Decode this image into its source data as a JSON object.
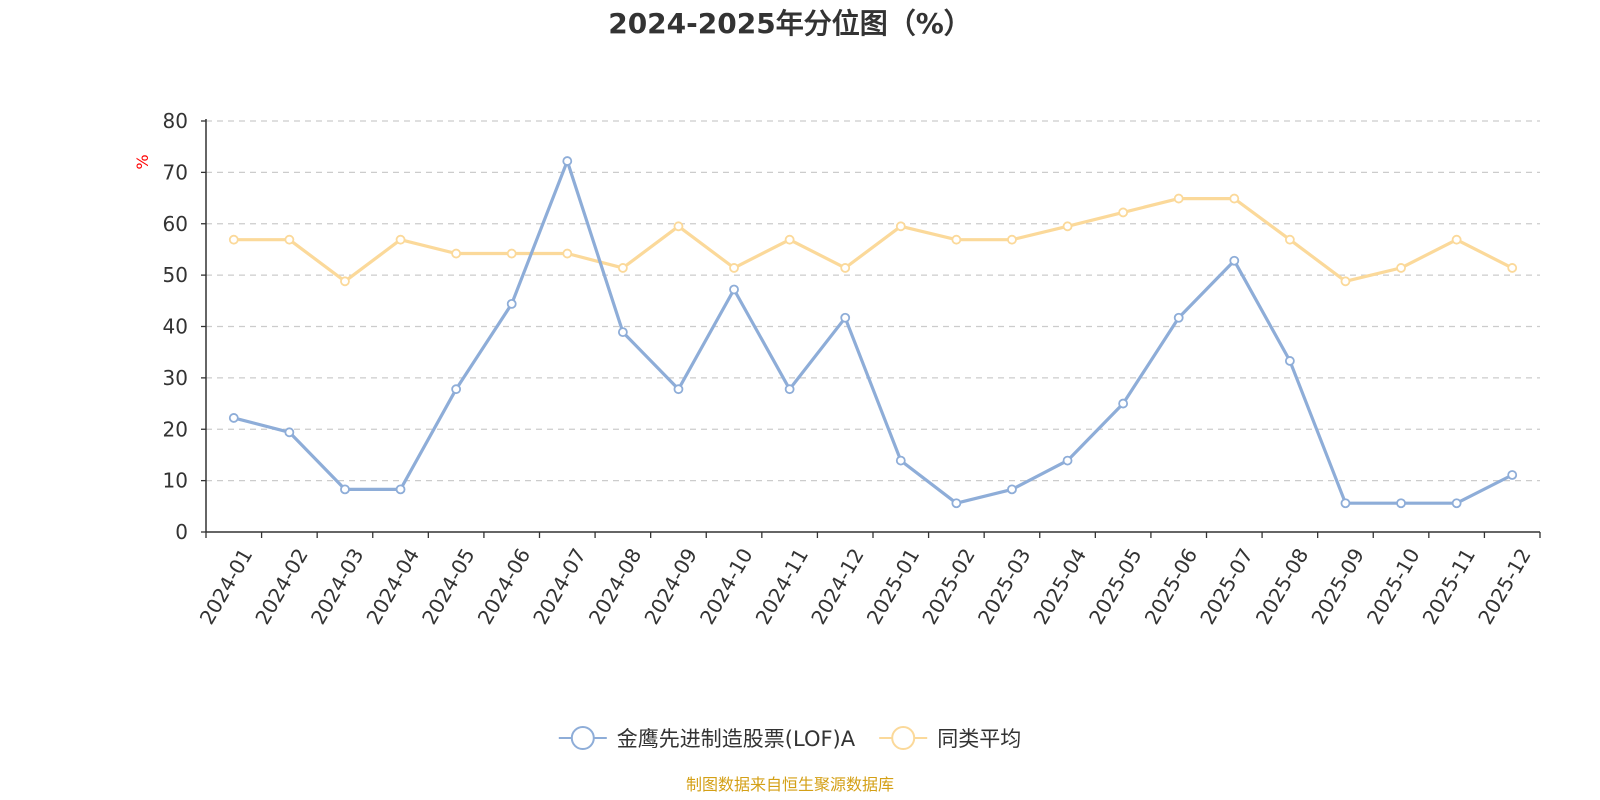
{
  "chart_data": {
    "type": "line",
    "title": "2024-2025年分位图（%）",
    "ylabel": "%",
    "ylim": [
      0,
      80
    ],
    "yticks": [
      0,
      10,
      20,
      30,
      40,
      50,
      60,
      70,
      80
    ],
    "grid": true,
    "legend_position": "bottom-center",
    "categories": [
      "2024-01",
      "2024-02",
      "2024-03",
      "2024-04",
      "2024-05",
      "2024-06",
      "2024-07",
      "2024-08",
      "2024-09",
      "2024-10",
      "2024-11",
      "2024-12",
      "2025-01",
      "2025-02",
      "2025-03",
      "2025-04",
      "2025-05",
      "2025-06",
      "2025-07",
      "2025-08",
      "2025-09",
      "2025-10",
      "2025-11",
      "2025-12"
    ],
    "series": [
      {
        "name": "金鹰先进制造股票(LOF)A",
        "color": "#8eadd8",
        "values": [
          22.2,
          19.4,
          8.3,
          8.3,
          27.8,
          44.4,
          72.2,
          38.9,
          27.8,
          47.2,
          27.8,
          41.7,
          13.9,
          5.6,
          8.3,
          13.9,
          25.0,
          41.7,
          52.8,
          33.3,
          5.6,
          5.6,
          5.6,
          11.1
        ]
      },
      {
        "name": "同类平均",
        "color": "#fbd99a",
        "values": [
          56.9,
          56.9,
          48.8,
          56.9,
          54.2,
          54.2,
          54.2,
          51.4,
          59.5,
          51.4,
          56.9,
          51.4,
          59.5,
          56.9,
          56.9,
          59.5,
          62.2,
          64.9,
          64.9,
          56.9,
          48.8,
          51.4,
          56.9,
          51.4
        ]
      }
    ],
    "source": "制图数据来自恒生聚源数据库",
    "colors": {
      "axis": "#333333",
      "grid": "#cccccc",
      "unit": "#ff0000",
      "source": "#d4a017"
    }
  }
}
